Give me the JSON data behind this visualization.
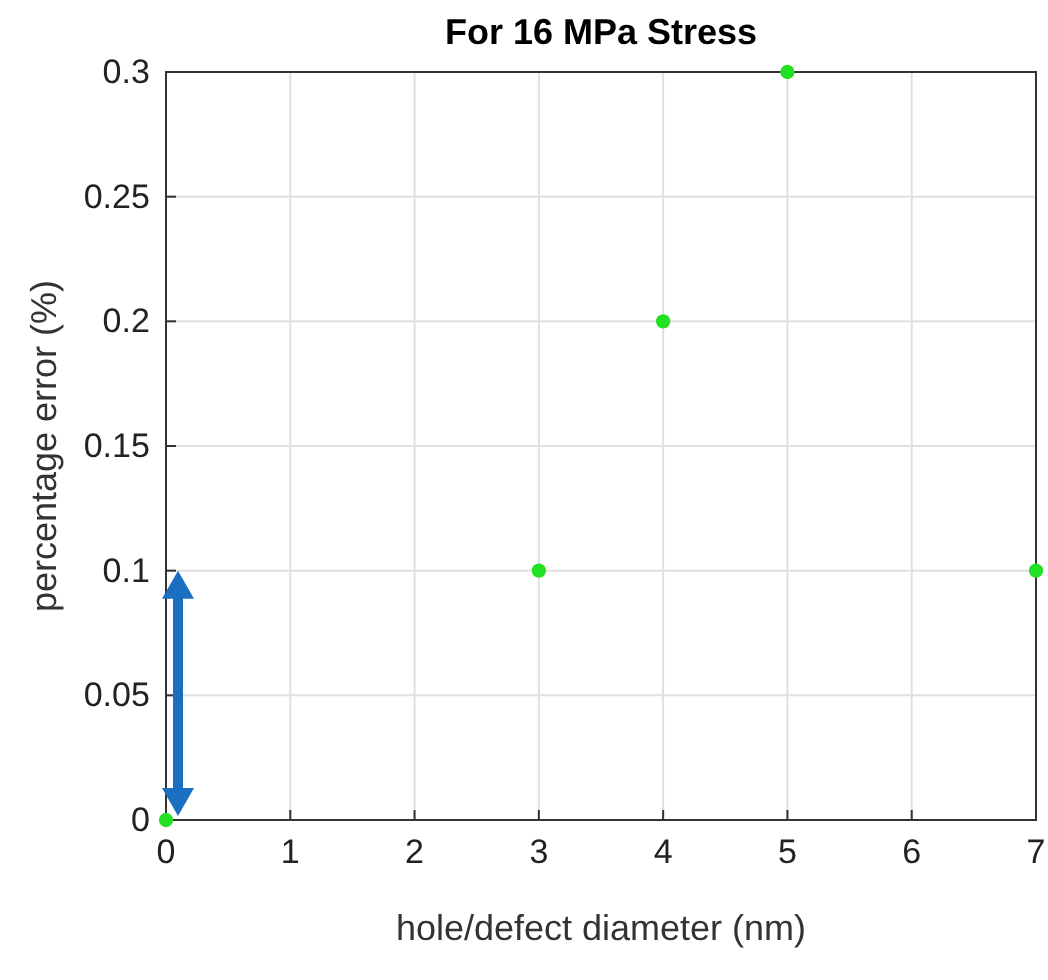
{
  "chart_data": {
    "type": "scatter",
    "title": "For 16 MPa Stress",
    "xlabel": "hole/defect diameter (nm)",
    "ylabel": "percentage error (%)",
    "x": [
      0,
      3,
      4,
      5,
      7
    ],
    "series": [
      {
        "color": "#22e022",
        "values": [
          0,
          0.1,
          0.2,
          0.3,
          0.1
        ]
      }
    ],
    "xlim": [
      0,
      7
    ],
    "xticks": [
      0,
      1,
      2,
      3,
      4,
      5,
      6,
      7
    ],
    "ylim": [
      0,
      0.3
    ],
    "yticks": [
      0,
      0.05,
      0.1,
      0.15,
      0.2,
      0.25,
      0.3
    ],
    "grid": true,
    "marker": "circle"
  }
}
